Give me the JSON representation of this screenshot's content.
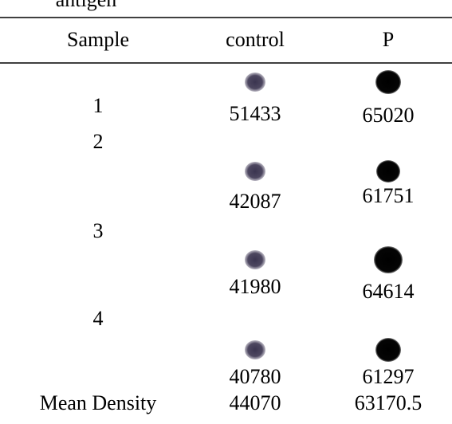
{
  "caption": "antigen",
  "table": {
    "header": [
      "Sample",
      "control",
      "P"
    ],
    "rows": [
      [
        "1",
        "51433",
        "65020"
      ],
      [
        "2",
        "42087",
        "61751"
      ],
      [
        "3",
        "41980",
        "64614"
      ],
      [
        "4",
        "40780",
        "61297"
      ]
    ],
    "footer": [
      "Mean Density",
      "44070",
      "63170.5"
    ]
  }
}
